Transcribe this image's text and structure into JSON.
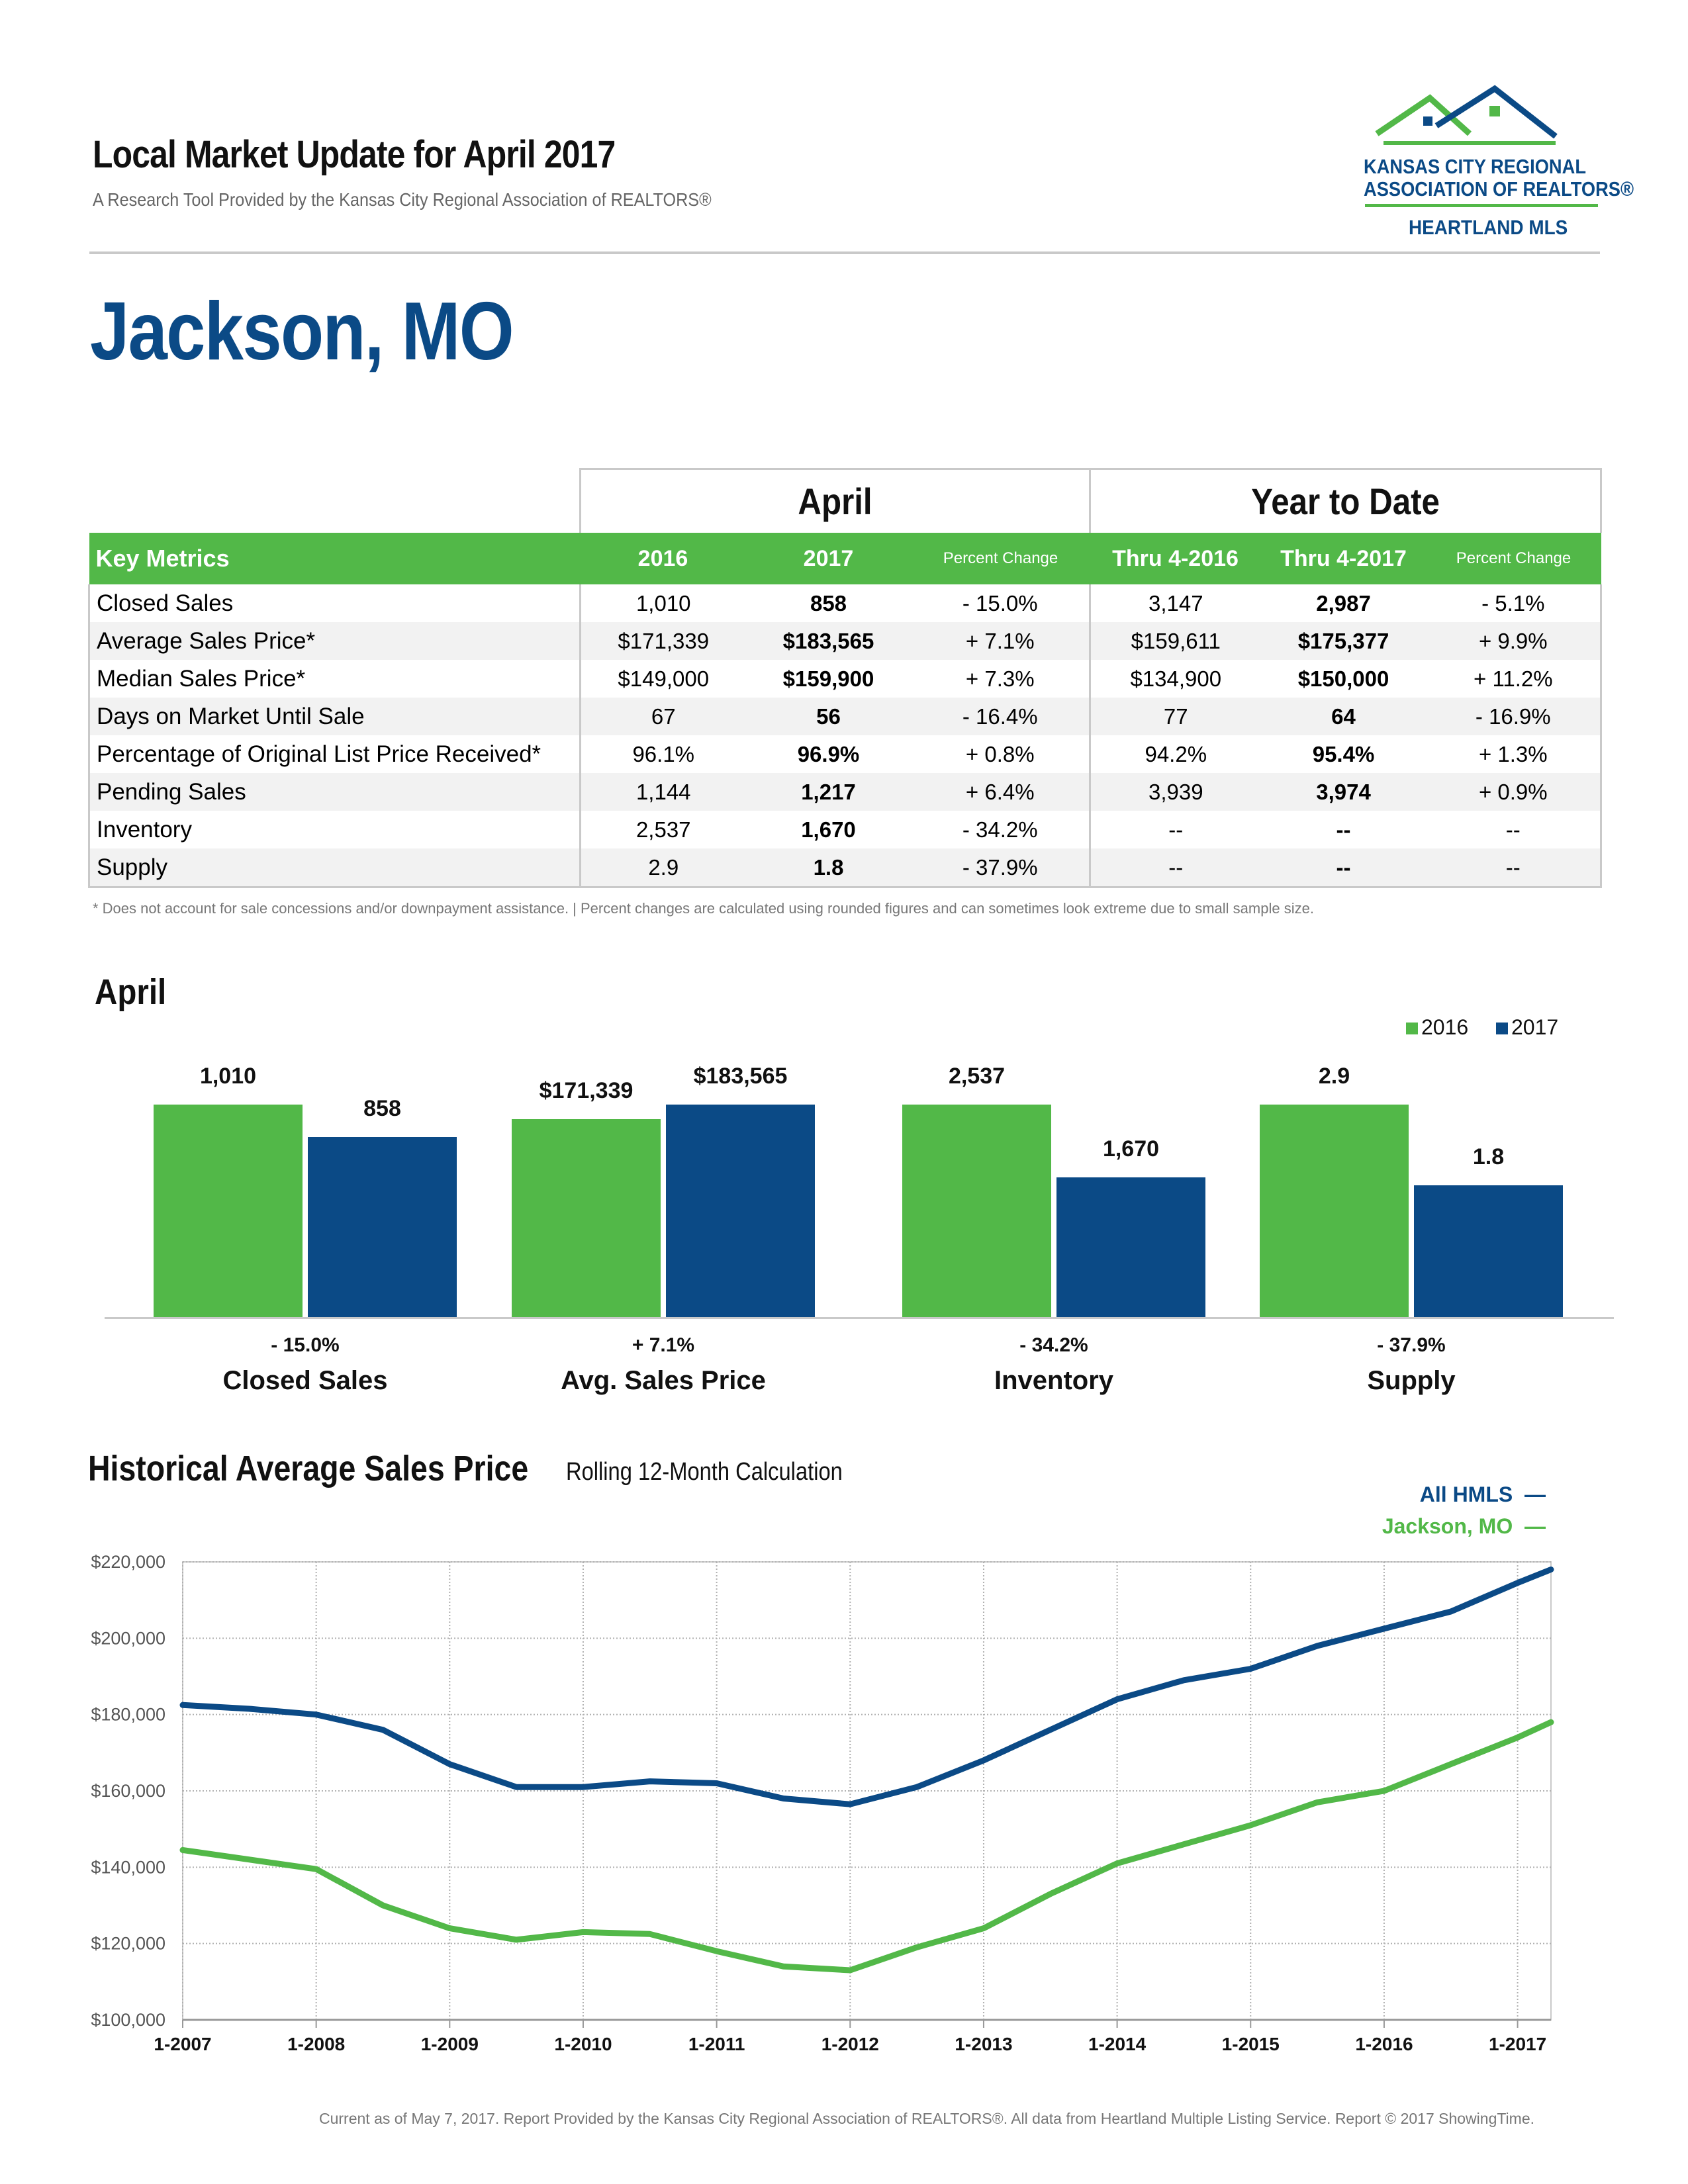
{
  "header": {
    "title": "Local Market Update for April 2017",
    "subtitle": "A Research Tool Provided by the Kansas City Regional Association of REALTORS®",
    "logo_line1": "KANSAS CITY REGIONAL",
    "logo_line2": "ASSOCIATION OF REALTORS®",
    "logo_line3": "HEARTLAND MLS"
  },
  "location": "Jackson, MO",
  "table": {
    "group_april": "April",
    "group_ytd": "Year to Date",
    "columns": [
      "Key Metrics",
      "2016",
      "2017",
      "Percent Change",
      "Thru 4-2016",
      "Thru 4-2017",
      "Percent Change"
    ],
    "rows": [
      {
        "metric": "Closed Sales",
        "a2016": "1,010",
        "a2017": "858",
        "apct": "- 15.0%",
        "y2016": "3,147",
        "y2017": "2,987",
        "ypct": "- 5.1%"
      },
      {
        "metric": "Average Sales Price*",
        "a2016": "$171,339",
        "a2017": "$183,565",
        "apct": "+ 7.1%",
        "y2016": "$159,611",
        "y2017": "$175,377",
        "ypct": "+ 9.9%"
      },
      {
        "metric": "Median Sales Price*",
        "a2016": "$149,000",
        "a2017": "$159,900",
        "apct": "+ 7.3%",
        "y2016": "$134,900",
        "y2017": "$150,000",
        "ypct": "+ 11.2%"
      },
      {
        "metric": "Days on Market Until Sale",
        "a2016": "67",
        "a2017": "56",
        "apct": "- 16.4%",
        "y2016": "77",
        "y2017": "64",
        "ypct": "- 16.9%"
      },
      {
        "metric": "Percentage of Original List Price Received*",
        "a2016": "96.1%",
        "a2017": "96.9%",
        "apct": "+ 0.8%",
        "y2016": "94.2%",
        "y2017": "95.4%",
        "ypct": "+ 1.3%"
      },
      {
        "metric": "Pending Sales",
        "a2016": "1,144",
        "a2017": "1,217",
        "apct": "+ 6.4%",
        "y2016": "3,939",
        "y2017": "3,974",
        "ypct": "+ 0.9%"
      },
      {
        "metric": "Inventory",
        "a2016": "2,537",
        "a2017": "1,670",
        "apct": "- 34.2%",
        "y2016": "--",
        "y2017": "--",
        "ypct": "--"
      },
      {
        "metric": "Supply",
        "a2016": "2.9",
        "a2017": "1.8",
        "apct": "- 37.9%",
        "y2016": "--",
        "y2017": "--",
        "ypct": "--"
      }
    ],
    "footnote": "* Does not account for sale concessions and/or downpayment assistance.  |  Percent changes are calculated using rounded figures and can sometimes look extreme due to small sample size."
  },
  "colors": {
    "green": "#52b848",
    "blue": "#0b4a86",
    "grid": "#c9c9c9"
  },
  "bar_section_title": "April",
  "chart_data": [
    {
      "type": "bar",
      "title": "April",
      "legend": [
        "2016",
        "2017"
      ],
      "legend_placement": "top-right",
      "groups": [
        {
          "category": "Closed Sales",
          "label2016": "1,010",
          "label2017": "858",
          "v2016": 1010,
          "v2017": 858,
          "change": "- 15.0%"
        },
        {
          "category": "Avg. Sales Price",
          "label2016": "$171,339",
          "label2017": "$183,565",
          "v2016": 171339,
          "v2017": 183565,
          "change": "+ 7.1%"
        },
        {
          "category": "Inventory",
          "label2016": "2,537",
          "label2017": "1,670",
          "v2016": 2537,
          "v2017": 1670,
          "change": "- 34.2%"
        },
        {
          "category": "Supply",
          "label2016": "2.9",
          "label2017": "1.8",
          "v2016": 2.9,
          "v2017": 1.8,
          "change": "- 37.9%"
        }
      ],
      "series": [
        {
          "name": "2016"
        },
        {
          "name": "2017"
        }
      ]
    },
    {
      "type": "line",
      "title": "Historical Average Sales Price",
      "subtitle": "Rolling 12-Month Calculation",
      "x_tick_labels": [
        "1-2007",
        "1-2008",
        "1-2009",
        "1-2010",
        "1-2011",
        "1-2012",
        "1-2013",
        "1-2014",
        "1-2015",
        "1-2016",
        "1-2017"
      ],
      "y_tick_labels": [
        "$100,000",
        "$120,000",
        "$140,000",
        "$160,000",
        "$180,000",
        "$200,000",
        "$220,000"
      ],
      "ylim": [
        100000,
        220000
      ],
      "xlim": [
        "1-2007",
        "4-2017"
      ],
      "grid": true,
      "legend_placement": "top-right",
      "series": [
        {
          "name": "All HMLS",
          "color": "#0b4a86",
          "x": [
            "1-2007",
            "7-2007",
            "1-2008",
            "7-2008",
            "1-2009",
            "7-2009",
            "1-2010",
            "7-2010",
            "1-2011",
            "7-2011",
            "1-2012",
            "7-2012",
            "1-2013",
            "7-2013",
            "1-2014",
            "7-2014",
            "1-2015",
            "7-2015",
            "1-2016",
            "7-2016",
            "1-2017",
            "4-2017"
          ],
          "values": [
            182500,
            181500,
            180000,
            176000,
            167000,
            161000,
            161000,
            162500,
            162000,
            158000,
            156500,
            161000,
            168000,
            176000,
            184000,
            189000,
            192000,
            198000,
            202500,
            207000,
            214500,
            218000
          ]
        },
        {
          "name": "Jackson, MO",
          "color": "#52b848",
          "x": [
            "1-2007",
            "7-2007",
            "1-2008",
            "7-2008",
            "1-2009",
            "7-2009",
            "1-2010",
            "7-2010",
            "1-2011",
            "7-2011",
            "1-2012",
            "7-2012",
            "1-2013",
            "7-2013",
            "1-2014",
            "7-2014",
            "1-2015",
            "7-2015",
            "1-2016",
            "7-2016",
            "1-2017",
            "4-2017"
          ],
          "values": [
            144500,
            142000,
            139500,
            130000,
            124000,
            121000,
            123000,
            122500,
            118000,
            114000,
            113000,
            119000,
            124000,
            133000,
            141000,
            146000,
            151000,
            157000,
            160000,
            167000,
            174000,
            178000
          ]
        }
      ]
    }
  ],
  "footer": "Current as of May 7, 2017. Report Provided by the Kansas City Regional Association of REALTORS®. All data from Heartland Multiple Listing Service. Report © 2017 ShowingTime."
}
